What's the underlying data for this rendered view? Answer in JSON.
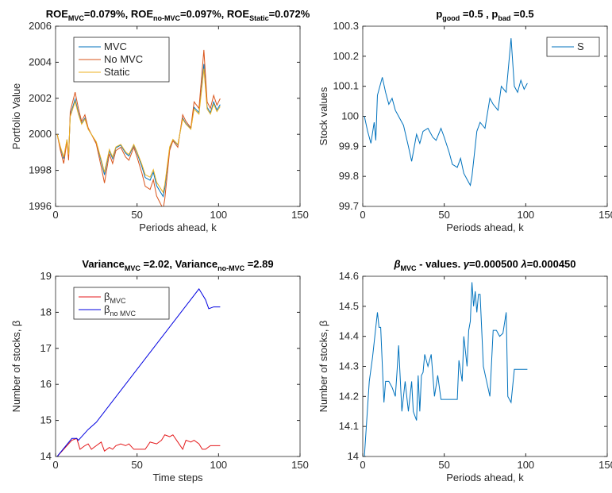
{
  "chart_data": [
    {
      "type": "line",
      "title": [
        {
          "text": "ROE"
        },
        {
          "text": "MVC",
          "sub": true
        },
        {
          "text": "=0.079%, ROE"
        },
        {
          "text": "no-MVC",
          "sub": true
        },
        {
          "text": "=0.097%, ROE"
        },
        {
          "text": "Static",
          "sub": true
        },
        {
          "text": "=0.072%"
        }
      ],
      "xlabel": "Periods ahead, k",
      "ylabel": "Portfolio Value",
      "xlim": [
        0,
        150
      ],
      "xticks": [
        0,
        50,
        100,
        150
      ],
      "ylim": [
        1996,
        2006
      ],
      "yticks": [
        1996,
        1998,
        2000,
        2002,
        2004,
        2006
      ],
      "legend": "northwest",
      "series": [
        {
          "name": [
            {
              "text": "MVC"
            }
          ],
          "color": "#0072bd",
          "x": [
            1,
            3,
            5,
            7,
            8,
            9,
            10,
            12,
            14,
            16,
            18,
            20,
            22,
            25,
            28,
            30,
            33,
            35,
            37,
            40,
            43,
            45,
            48,
            50,
            53,
            55,
            58,
            60,
            62,
            64,
            66,
            67,
            70,
            72,
            75,
            78,
            80,
            83,
            85,
            88,
            90,
            91,
            93,
            95,
            97,
            99,
            101
          ],
          "values": [
            2000,
            1999.25,
            1998.65,
            1999.7,
            1998.8,
            2001.05,
            2001.35,
            2001.95,
            2001.2,
            2000.6,
            2000.9,
            2000.3,
            2000,
            1999.55,
            1998.5,
            1997.75,
            1999.1,
            1998.65,
            1999.25,
            1999.4,
            1998.95,
            1998.8,
            1999.4,
            1998.95,
            1998.2,
            1997.6,
            1997.45,
            1997.9,
            1997.15,
            1996.85,
            1996.55,
            1997,
            1999.25,
            1999.7,
            1999.4,
            2000.9,
            2000.6,
            2000.3,
            2001.5,
            2001.2,
            2003,
            2003.9,
            2001.5,
            2001.2,
            2001.8,
            2001.35,
            2001.65
          ]
        },
        {
          "name": [
            {
              "text": "No MVC"
            }
          ],
          "color": "#d95319",
          "x": [
            1,
            3,
            5,
            7,
            8,
            9,
            10,
            12,
            14,
            16,
            18,
            20,
            22,
            25,
            28,
            30,
            33,
            35,
            37,
            40,
            43,
            45,
            48,
            50,
            53,
            55,
            58,
            60,
            62,
            64,
            66,
            67,
            70,
            72,
            75,
            78,
            80,
            83,
            85,
            88,
            90,
            91,
            93,
            95,
            97,
            99,
            101
          ],
          "values": [
            2000,
            1999.1,
            1998.38,
            1999.64,
            1998.56,
            2001.26,
            2001.62,
            2002.34,
            2001.44,
            2000.72,
            2001.08,
            2000.36,
            2000,
            1999.46,
            1998.2,
            1997.3,
            1998.92,
            1998.38,
            1999.1,
            1999.28,
            1998.74,
            1998.56,
            1999.28,
            1998.74,
            1997.84,
            1997.12,
            1996.94,
            1997.48,
            1996.58,
            1996.22,
            1995.86,
            1996.4,
            1999.1,
            1999.64,
            1999.28,
            2001.08,
            2000.72,
            2000.36,
            2001.8,
            2001.44,
            2003.6,
            2004.68,
            2001.8,
            2001.44,
            2002.16,
            2001.62,
            2001.98
          ]
        },
        {
          "name": [
            {
              "text": "Static"
            }
          ],
          "color": "#edb120",
          "x": [
            1,
            3,
            5,
            7,
            8,
            9,
            10,
            12,
            14,
            16,
            18,
            20,
            22,
            25,
            28,
            30,
            33,
            35,
            37,
            40,
            43,
            45,
            48,
            50,
            53,
            55,
            58,
            60,
            62,
            64,
            66,
            67,
            70,
            72,
            75,
            78,
            80,
            83,
            85,
            88,
            90,
            91,
            93,
            95,
            97,
            99,
            101
          ],
          "values": [
            2000,
            1999.3,
            1998.74,
            1999.72,
            1998.88,
            2000.98,
            2001.26,
            2001.82,
            2001.12,
            2000.56,
            2000.84,
            2000.28,
            2000,
            1999.58,
            1998.6,
            1997.9,
            1999.16,
            1998.74,
            1999.3,
            1999.44,
            1999.02,
            1998.88,
            1999.44,
            1999.02,
            1998.32,
            1997.76,
            1997.62,
            1998.04,
            1997.34,
            1997.06,
            1996.78,
            1997.2,
            1999.3,
            1999.72,
            1999.44,
            2000.84,
            2000.56,
            2000.28,
            2001.4,
            2001.12,
            2002.8,
            2003.64,
            2001.4,
            2001.12,
            2001.68,
            2001.26,
            2001.54
          ]
        }
      ]
    },
    {
      "type": "line",
      "title": [
        {
          "text": "p"
        },
        {
          "text": "good",
          "sub": true
        },
        {
          "text": " =0.5 , p"
        },
        {
          "text": "bad",
          "sub": true
        },
        {
          "text": " =0.5"
        }
      ],
      "xlabel": "Periods ahead, k",
      "ylabel": "Stock values",
      "xlim": [
        0,
        150
      ],
      "xticks": [
        0,
        50,
        100,
        150
      ],
      "ylim": [
        99.7,
        100.3
      ],
      "yticks": [
        99.7,
        99.8,
        99.9,
        100,
        100.1,
        100.2,
        100.3
      ],
      "legend": "northeast",
      "series": [
        {
          "name": [
            {
              "text": "S"
            }
          ],
          "color": "#0072bd",
          "x": [
            1,
            3,
            5,
            7,
            8,
            9,
            10,
            12,
            14,
            16,
            18,
            20,
            22,
            25,
            28,
            30,
            33,
            35,
            37,
            40,
            43,
            45,
            48,
            50,
            53,
            55,
            58,
            60,
            62,
            64,
            66,
            67,
            70,
            72,
            75,
            78,
            80,
            83,
            85,
            88,
            90,
            91,
            93,
            95,
            97,
            99,
            101
          ],
          "values": [
            100,
            99.95,
            99.91,
            99.98,
            99.92,
            100.07,
            100.09,
            100.13,
            100.08,
            100.04,
            100.06,
            100.02,
            100,
            99.97,
            99.9,
            99.85,
            99.94,
            99.91,
            99.95,
            99.96,
            99.93,
            99.92,
            99.96,
            99.93,
            99.88,
            99.84,
            99.83,
            99.86,
            99.81,
            99.79,
            99.77,
            99.8,
            99.95,
            99.98,
            99.96,
            100.06,
            100.04,
            100.02,
            100.1,
            100.08,
            100.2,
            100.26,
            100.1,
            100.08,
            100.12,
            100.09,
            100.11
          ]
        }
      ]
    },
    {
      "type": "line",
      "title": [
        {
          "text": "Variance"
        },
        {
          "text": "MVC",
          "sub": true
        },
        {
          "text": " =2.02, Variance"
        },
        {
          "text": "no-MVC",
          "sub": true
        },
        {
          "text": " =2.89"
        }
      ],
      "xlabel": "Time steps",
      "ylabel": "Number of stocks, β",
      "xlim": [
        0,
        150
      ],
      "xticks": [
        0,
        50,
        100,
        150
      ],
      "ylim": [
        14,
        19
      ],
      "yticks": [
        14,
        15,
        16,
        17,
        18,
        19
      ],
      "legend": "northwest",
      "series": [
        {
          "name": [
            {
              "text": "β"
            },
            {
              "text": "MVC",
              "sub": true
            }
          ],
          "color": "#e41a1c",
          "x": [
            1,
            10,
            13,
            15,
            18,
            20,
            22,
            25,
            28,
            30,
            33,
            35,
            37,
            40,
            43,
            45,
            48,
            55,
            58,
            62,
            65,
            67,
            70,
            72,
            75,
            78,
            80,
            83,
            85,
            88,
            90,
            92,
            95,
            101
          ],
          "values": [
            14,
            14.45,
            14.5,
            14.2,
            14.3,
            14.35,
            14.2,
            14.3,
            14.4,
            14.15,
            14.25,
            14.2,
            14.3,
            14.35,
            14.3,
            14.35,
            14.2,
            14.2,
            14.4,
            14.35,
            14.45,
            14.6,
            14.55,
            14.6,
            14.4,
            14.2,
            14.45,
            14.4,
            14.45,
            14.35,
            14.2,
            14.2,
            14.3,
            14.3
          ]
        },
        {
          "name": [
            {
              "text": "β"
            },
            {
              "text": "no MVC",
              "sub": true
            }
          ],
          "color": "#0000e0",
          "x": [
            1,
            10,
            13,
            14,
            16,
            20,
            25,
            88,
            92,
            94,
            97,
            101
          ],
          "values": [
            14,
            14.5,
            14.5,
            14.45,
            14.55,
            14.75,
            14.95,
            18.65,
            18.35,
            18.1,
            18.15,
            18.15
          ]
        }
      ]
    },
    {
      "type": "line",
      "title": [
        {
          "text": "β",
          "italic": true
        },
        {
          "text": "MVC",
          "sub": true
        },
        {
          "text": " - values. "
        },
        {
          "text": "γ",
          "italic": true
        },
        {
          "text": "=0.000500 "
        },
        {
          "text": "λ",
          "italic": true
        },
        {
          "text": "=0.000450"
        }
      ],
      "xlabel": "Periods ahead, k",
      "ylabel": "Number of stocks, β",
      "xlim": [
        0,
        150
      ],
      "xticks": [
        0,
        50,
        100,
        150
      ],
      "ylim": [
        14,
        14.6
      ],
      "yticks": [
        14,
        14.1,
        14.2,
        14.3,
        14.4,
        14.5,
        14.6
      ],
      "series": [
        {
          "color": "#0072bd",
          "x": [
            1,
            4,
            6,
            8,
            9,
            10,
            11,
            13,
            14,
            16,
            18,
            20,
            21,
            22,
            24,
            25,
            26,
            28,
            30,
            31,
            33,
            34,
            35,
            36,
            37,
            38,
            40,
            42,
            44,
            46,
            48,
            50,
            55,
            58,
            59,
            61,
            62,
            64,
            65,
            66,
            67,
            68,
            69,
            70,
            71,
            72,
            74,
            76,
            78,
            80,
            82,
            84,
            86,
            88,
            89,
            91,
            93,
            97,
            101
          ],
          "values": [
            14,
            14.25,
            14.33,
            14.43,
            14.48,
            14.43,
            14.43,
            14.18,
            14.25,
            14.25,
            14.23,
            14.2,
            14.28,
            14.37,
            14.15,
            14.2,
            14.25,
            14.15,
            14.25,
            14.15,
            14.12,
            14.27,
            14.15,
            14.27,
            14.28,
            14.34,
            14.3,
            14.34,
            14.2,
            14.27,
            14.19,
            14.19,
            14.19,
            14.19,
            14.32,
            14.25,
            14.4,
            14.3,
            14.42,
            14.45,
            14.58,
            14.5,
            14.55,
            14.48,
            14.54,
            14.54,
            14.3,
            14.25,
            14.2,
            14.42,
            14.42,
            14.4,
            14.41,
            14.48,
            14.2,
            14.18,
            14.29,
            14.29,
            14.29
          ]
        }
      ]
    }
  ]
}
